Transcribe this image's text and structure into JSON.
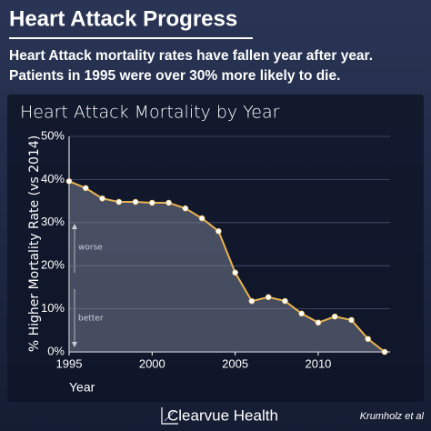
{
  "header": {
    "title": "Heart Attack Progress",
    "subtitle": [
      "Heart Attack mortality rates have fallen year after year.",
      "Patients in 1995 were over 30% more likely to die."
    ]
  },
  "footer": {
    "brand": "Clearvue Health",
    "credit": "Krumholz et al"
  },
  "chart_data": {
    "type": "line",
    "title": "Heart Attack Mortality by Year",
    "x_label": "Year",
    "y_label": "% Higher Mortality Rate (vs 2014)",
    "annotations": [
      "worse",
      "better"
    ],
    "x": [
      1995,
      1996,
      1997,
      1998,
      1999,
      2000,
      2001,
      2002,
      2003,
      2004,
      2005,
      2006,
      2007,
      2008,
      2009,
      2010,
      2011,
      2012,
      2013,
      2014
    ],
    "series": [
      {
        "name": "Mortality",
        "color": "#e8b450",
        "values": [
          39.6,
          38,
          35.6,
          34.8,
          34.8,
          34.6,
          34.6,
          33.3,
          31,
          28,
          18.4,
          11.8,
          12.7,
          11.8,
          8.9,
          6.8,
          8.2,
          7.4,
          3,
          0
        ]
      }
    ],
    "xlim": [
      1995,
      2014
    ],
    "xticks": [
      1995,
      2000,
      2005,
      2010
    ],
    "ylim": [
      0,
      50
    ],
    "yticks": [
      {
        "value": 0,
        "label": "0%"
      },
      {
        "value": 10,
        "label": "10%"
      },
      {
        "value": 20,
        "label": "20%"
      },
      {
        "value": 30,
        "label": "30%"
      },
      {
        "value": 40,
        "label": "40%"
      },
      {
        "value": 50,
        "label": "50%"
      }
    ],
    "grid": true
  }
}
